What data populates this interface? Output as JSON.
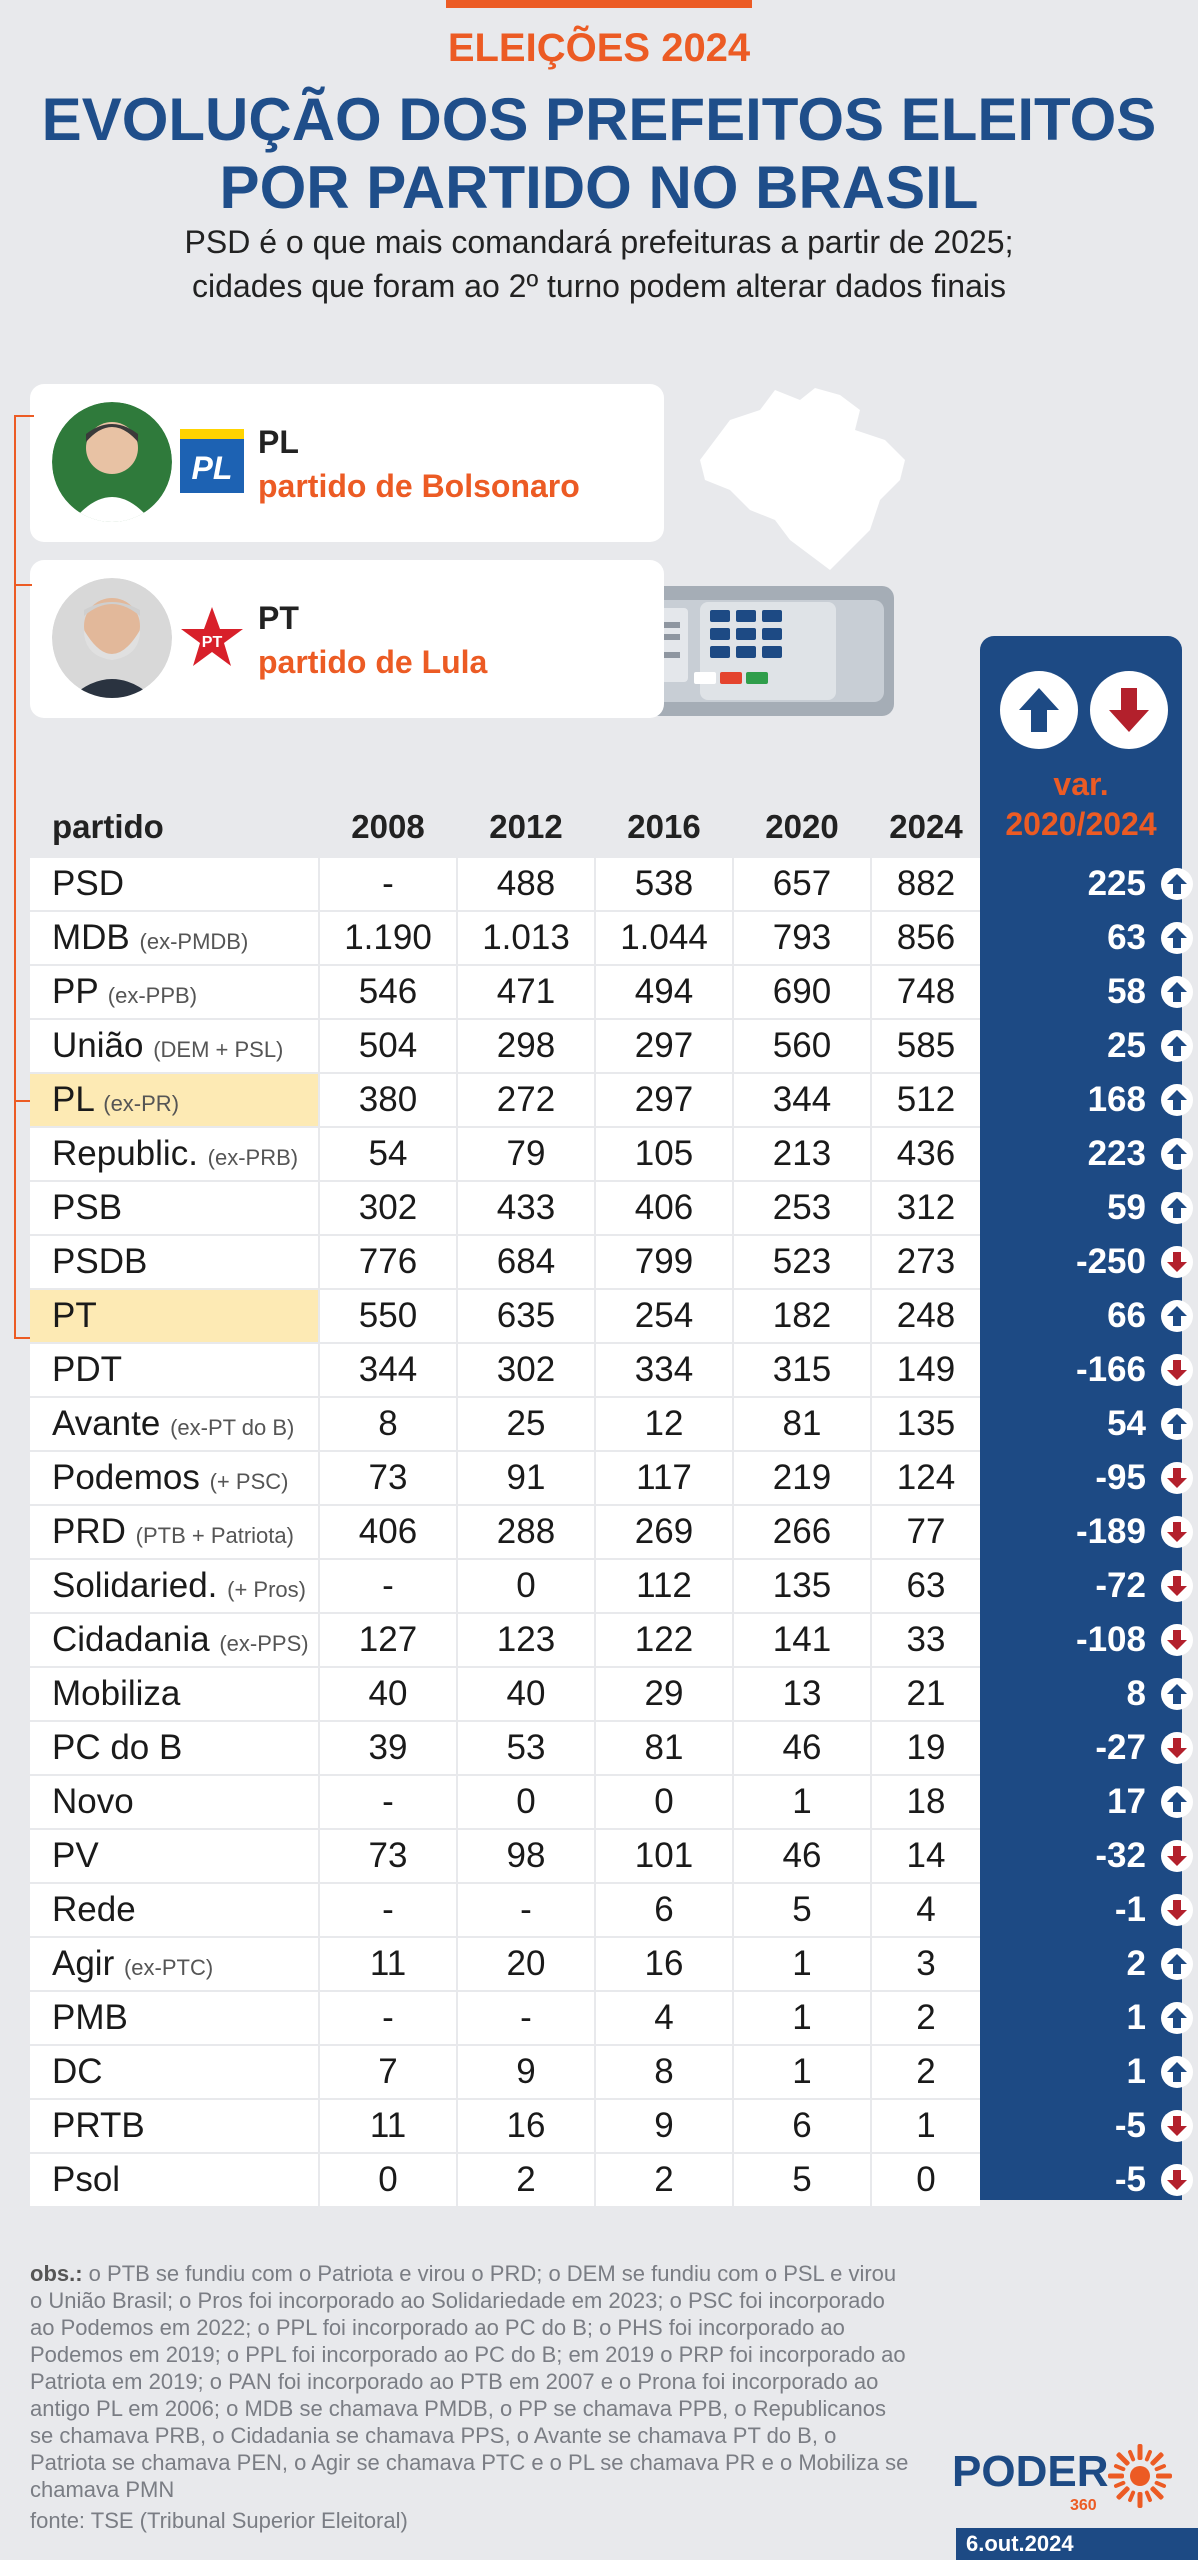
{
  "header": {
    "kicker": "ELEIÇÕES 2024",
    "title_line1": "EVOLUÇÃO DOS PREFEITOS ELEITOS",
    "title_line2": "POR PARTIDO NO BRASIL",
    "subtitle_line1": "PSD é o que mais comandará prefeituras a partir de 2025;",
    "subtitle_line2": "cidades que foram ao 2º turno podem alterar dados finais"
  },
  "callouts": {
    "pl": {
      "name": "PL",
      "desc": "partido de Bolsonaro",
      "logo_text": "PL"
    },
    "pt": {
      "name": "PT",
      "desc": "partido de Lula",
      "logo_text": "PT"
    }
  },
  "colors": {
    "accent": "#ec5b24",
    "navy": "#1d4a84",
    "highlight": "#fdeab4",
    "down": "#b3202c"
  },
  "chart_data": {
    "type": "table",
    "columns": [
      "partido",
      "2008",
      "2012",
      "2016",
      "2020",
      "2024"
    ],
    "var_label_line1": "var.",
    "var_label_line2": "2020/2024",
    "rows": [
      {
        "party": "PSD",
        "note": "",
        "values": [
          "-",
          "488",
          "538",
          "657",
          "882"
        ],
        "var": "225",
        "dir": "up",
        "hl": false
      },
      {
        "party": "MDB",
        "note": "(ex-PMDB)",
        "values": [
          "1.190",
          "1.013",
          "1.044",
          "793",
          "856"
        ],
        "var": "63",
        "dir": "up",
        "hl": false
      },
      {
        "party": "PP",
        "note": "(ex-PPB)",
        "values": [
          "546",
          "471",
          "494",
          "690",
          "748"
        ],
        "var": "58",
        "dir": "up",
        "hl": false
      },
      {
        "party": "União",
        "note": "(DEM + PSL)",
        "values": [
          "504",
          "298",
          "297",
          "560",
          "585"
        ],
        "var": "25",
        "dir": "up",
        "hl": false
      },
      {
        "party": "PL",
        "note": "(ex-PR)",
        "values": [
          "380",
          "272",
          "297",
          "344",
          "512"
        ],
        "var": "168",
        "dir": "up",
        "hl": true
      },
      {
        "party": "Republic.",
        "note": "(ex-PRB)",
        "values": [
          "54",
          "79",
          "105",
          "213",
          "436"
        ],
        "var": "223",
        "dir": "up",
        "hl": false
      },
      {
        "party": "PSB",
        "note": "",
        "values": [
          "302",
          "433",
          "406",
          "253",
          "312"
        ],
        "var": "59",
        "dir": "up",
        "hl": false
      },
      {
        "party": "PSDB",
        "note": "",
        "values": [
          "776",
          "684",
          "799",
          "523",
          "273"
        ],
        "var": "-250",
        "dir": "down",
        "hl": false
      },
      {
        "party": "PT",
        "note": "",
        "values": [
          "550",
          "635",
          "254",
          "182",
          "248"
        ],
        "var": "66",
        "dir": "up",
        "hl": true
      },
      {
        "party": "PDT",
        "note": "",
        "values": [
          "344",
          "302",
          "334",
          "315",
          "149"
        ],
        "var": "-166",
        "dir": "down",
        "hl": false
      },
      {
        "party": "Avante",
        "note": "(ex-PT do B)",
        "values": [
          "8",
          "25",
          "12",
          "81",
          "135"
        ],
        "var": "54",
        "dir": "up",
        "hl": false
      },
      {
        "party": "Podemos",
        "note": "(+ PSC)",
        "values": [
          "73",
          "91",
          "117",
          "219",
          "124"
        ],
        "var": "-95",
        "dir": "down",
        "hl": false
      },
      {
        "party": "PRD",
        "note": "(PTB + Patriota)",
        "values": [
          "406",
          "288",
          "269",
          "266",
          "77"
        ],
        "var": "-189",
        "dir": "down",
        "hl": false
      },
      {
        "party": "Solidaried.",
        "note": "(+ Pros)",
        "values": [
          "-",
          "0",
          "112",
          "135",
          "63"
        ],
        "var": "-72",
        "dir": "down",
        "hl": false
      },
      {
        "party": "Cidadania",
        "note": "(ex-PPS)",
        "values": [
          "127",
          "123",
          "122",
          "141",
          "33"
        ],
        "var": "-108",
        "dir": "down",
        "hl": false
      },
      {
        "party": "Mobiliza",
        "note": "",
        "values": [
          "40",
          "40",
          "29",
          "13",
          "21"
        ],
        "var": "8",
        "dir": "up",
        "hl": false
      },
      {
        "party": "PC do B",
        "note": "",
        "values": [
          "39",
          "53",
          "81",
          "46",
          "19"
        ],
        "var": "-27",
        "dir": "down",
        "hl": false
      },
      {
        "party": "Novo",
        "note": "",
        "values": [
          "-",
          "0",
          "0",
          "1",
          "18"
        ],
        "var": "17",
        "dir": "up",
        "hl": false
      },
      {
        "party": "PV",
        "note": "",
        "values": [
          "73",
          "98",
          "101",
          "46",
          "14"
        ],
        "var": "-32",
        "dir": "down",
        "hl": false
      },
      {
        "party": "Rede",
        "note": "",
        "values": [
          "-",
          "-",
          "6",
          "5",
          "4"
        ],
        "var": "-1",
        "dir": "down",
        "hl": false
      },
      {
        "party": "Agir",
        "note": "(ex-PTC)",
        "values": [
          "11",
          "20",
          "16",
          "1",
          "3"
        ],
        "var": "2",
        "dir": "up",
        "hl": false
      },
      {
        "party": "PMB",
        "note": "",
        "values": [
          "-",
          "-",
          "4",
          "1",
          "2"
        ],
        "var": "1",
        "dir": "up",
        "hl": false
      },
      {
        "party": "DC",
        "note": "",
        "values": [
          "7",
          "9",
          "8",
          "1",
          "2"
        ],
        "var": "1",
        "dir": "up",
        "hl": false
      },
      {
        "party": "PRTB",
        "note": "",
        "values": [
          "11",
          "16",
          "9",
          "6",
          "1"
        ],
        "var": "-5",
        "dir": "down",
        "hl": false
      },
      {
        "party": "Psol",
        "note": "",
        "values": [
          "0",
          "2",
          "2",
          "5",
          "0"
        ],
        "var": "-5",
        "dir": "down",
        "hl": false
      }
    ]
  },
  "footer": {
    "obs_label": "obs.:",
    "obs_text": " o PTB se fundiu com o Patriota e virou o PRD; o DEM se fundiu com o PSL e virou o União Brasil; o Pros foi incorporado ao Solidariedade em 2023; o PSC foi incorporado ao Podemos em 2022; o PPL foi incorporado ao PC do B; o PHS foi incorporado ao Podemos em 2019; o PPL foi incorporado ao PC do B; em 2019 o PRP foi incorporado ao Patriota em 2019; o PAN foi incorporado ao PTB em 2007 e o Prona foi incorporado ao antigo PL em 2006; o MDB se chamava PMDB, o PP se chamava PPB, o Republicanos se chamava PRB, o Cidadania se chamava PPS, o Avante se chamava PT do B, o Patriota se chamava PEN, o Agir se chamava PTC e o PL se chamava PR e o Mobiliza se chamava PMN",
    "source": "fonte: TSE (Tribunal Superior Eleitoral)",
    "brand": "PODER",
    "brand_sub": "360",
    "date": "6.out.2024"
  }
}
